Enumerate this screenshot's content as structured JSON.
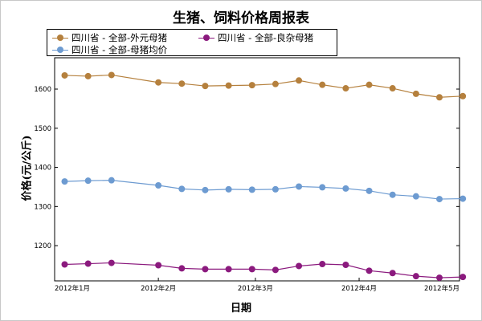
{
  "chart_data": {
    "type": "line",
    "title": "生猪、饲料价格周报表",
    "xlabel": "日期",
    "ylabel": "价格(元/公斤)",
    "x_ticks": [
      "2012年1月",
      "2012年2月",
      "2012年3月",
      "2012年4月",
      "2012年5月"
    ],
    "x_tick_positions": [
      0,
      31,
      60,
      91,
      121
    ],
    "y_ticks": [
      1200,
      1300,
      1400,
      1500,
      1600
    ],
    "ylim": [
      1110,
      1680
    ],
    "xlim": [
      0,
      121
    ],
    "x": [
      3,
      10,
      17,
      31,
      38,
      45,
      52,
      59,
      66,
      73,
      80,
      87,
      94,
      101,
      108,
      115,
      122
    ],
    "series": [
      {
        "name": "四川省 - 全部-外元母猪",
        "color": "#b5803d",
        "values": [
          1635,
          1633,
          1636,
          1617,
          1614,
          1608,
          1609,
          1610,
          1613,
          1622,
          1611,
          1602,
          1611,
          1602,
          1588,
          1579,
          1582
        ]
      },
      {
        "name": "四川省 - 全部-良杂母猪",
        "color": "#8b1a7e",
        "values": [
          1152,
          1154,
          1156,
          1150,
          1142,
          1140,
          1140,
          1140,
          1138,
          1148,
          1153,
          1151,
          1136,
          1130,
          1122,
          1118,
          1120
        ]
      },
      {
        "name": "四川省 - 全部-母猪均价",
        "color": "#6d9bd1",
        "values": [
          1364,
          1366,
          1367,
          1354,
          1345,
          1342,
          1344,
          1343,
          1344,
          1351,
          1349,
          1346,
          1340,
          1330,
          1326,
          1319,
          1320
        ]
      }
    ],
    "grid": false,
    "legend_placement": "top"
  }
}
